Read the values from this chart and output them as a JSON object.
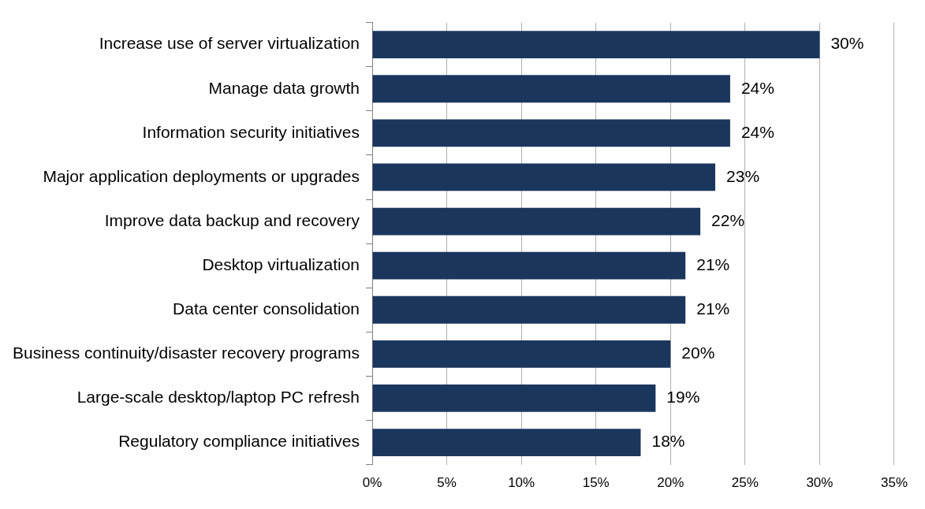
{
  "chart_data": {
    "type": "bar",
    "orientation": "horizontal",
    "categories": [
      "Increase use of server virtualization",
      "Manage data growth",
      "Information security initiatives",
      "Major application deployments or upgrades",
      "Improve data backup and recovery",
      "Desktop virtualization",
      "Data center consolidation",
      "Business continuity/disaster recovery programs",
      "Large-scale desktop/laptop PC refresh",
      "Regulatory compliance initiatives"
    ],
    "values": [
      30,
      24,
      24,
      23,
      22,
      21,
      21,
      20,
      19,
      18
    ],
    "value_labels": [
      "30%",
      "24%",
      "24%",
      "23%",
      "22%",
      "21%",
      "21%",
      "20%",
      "19%",
      "18%"
    ],
    "color": "#1b365d",
    "xlim": [
      0,
      35
    ],
    "xticks": [
      {
        "value": 0,
        "label": "0%"
      },
      {
        "value": 5,
        "label": "5%"
      },
      {
        "value": 10,
        "label": "10%"
      },
      {
        "value": 15,
        "label": "15%"
      },
      {
        "value": 20,
        "label": "20%"
      },
      {
        "value": 25,
        "label": "25%"
      },
      {
        "value": 30,
        "label": "30%"
      },
      {
        "value": 35,
        "label": "35%"
      }
    ],
    "grid": "x",
    "legend": false
  }
}
